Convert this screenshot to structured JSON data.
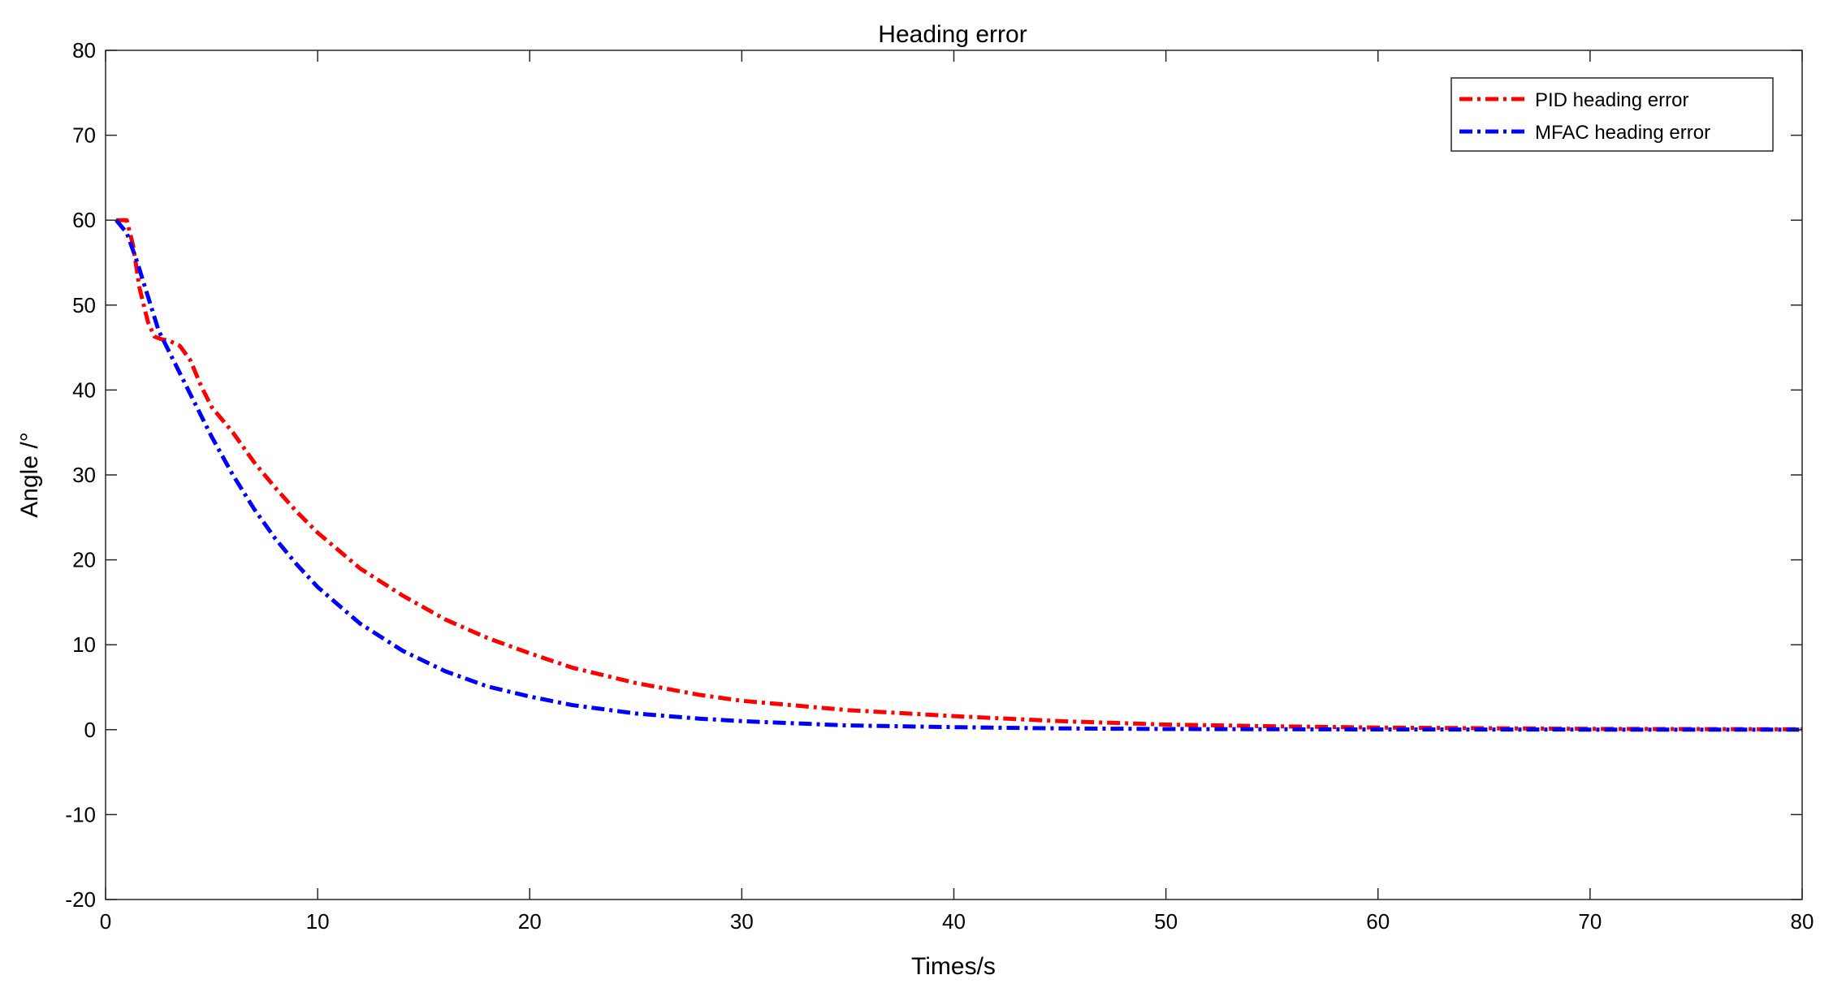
{
  "chart_data": {
    "type": "line",
    "title": "Heading error",
    "xlabel": "Times/s",
    "ylabel": "Angle /°",
    "xlim": [
      0,
      80
    ],
    "ylim": [
      -20,
      80
    ],
    "xticks": [
      0,
      10,
      20,
      30,
      40,
      50,
      60,
      70,
      80
    ],
    "yticks": [
      -20,
      -10,
      0,
      10,
      20,
      30,
      40,
      50,
      60,
      70,
      80
    ],
    "xtick_labels": [
      "0",
      "10",
      "20",
      "30",
      "40",
      "50",
      "60",
      "70",
      "80"
    ],
    "ytick_labels": [
      "-20",
      "-10",
      "0",
      "10",
      "20",
      "30",
      "40",
      "50",
      "60",
      "70",
      "80"
    ],
    "grid": false,
    "legend": "top-right",
    "series": [
      {
        "name": "PID heading error",
        "color": "#ff0000",
        "line_style": "dash-dot",
        "x": [
          0.5,
          1,
          1.3,
          1.6,
          2,
          2.3,
          2.6,
          3,
          3.5,
          4,
          4.5,
          5,
          5.5,
          6,
          7,
          8,
          9,
          10,
          12,
          14,
          16,
          18,
          20,
          22,
          25,
          28,
          30,
          35,
          40,
          45,
          50,
          55,
          60,
          70,
          80
        ],
        "y": [
          60,
          60,
          57,
          52,
          48,
          46.3,
          46,
          45.8,
          45.2,
          43.5,
          40.5,
          38,
          36.5,
          35,
          31.5,
          28.5,
          25.7,
          23.2,
          19,
          15.8,
          13,
          10.8,
          9,
          7.3,
          5.5,
          4.1,
          3.4,
          2.3,
          1.6,
          1.0,
          0.6,
          0.4,
          0.25,
          0.1,
          0.05
        ]
      },
      {
        "name": "MFAC heading error",
        "color": "#0000ff",
        "line_style": "dash-dot",
        "x": [
          0.5,
          1,
          1.5,
          2,
          2.5,
          3,
          3.5,
          4,
          5,
          6,
          7,
          8,
          9,
          10,
          12,
          14,
          16,
          18,
          20,
          22,
          25,
          28,
          30,
          35,
          40,
          45,
          50,
          60,
          70,
          80
        ],
        "y": [
          60,
          58.5,
          55,
          51,
          47,
          44.5,
          42,
          39.5,
          34.5,
          30,
          26,
          22.5,
          19.5,
          16.8,
          12.5,
          9.3,
          6.9,
          5.1,
          3.9,
          2.9,
          1.9,
          1.3,
          1.0,
          0.5,
          0.3,
          0.15,
          0.08,
          0.03,
          0.01,
          0
        ]
      }
    ]
  }
}
